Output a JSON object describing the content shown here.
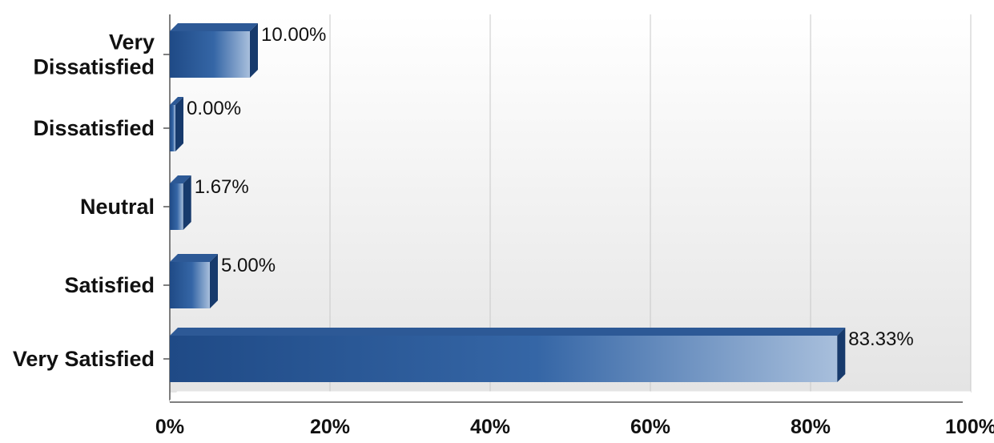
{
  "chart_data": {
    "type": "bar",
    "orientation": "horizontal",
    "categories": [
      [
        "Very",
        "Dissatisfied"
      ],
      [
        "Dissatisfied"
      ],
      [
        "Neutral"
      ],
      [
        "Satisfied"
      ],
      [
        "Very Satisfied"
      ]
    ],
    "values": [
      10.0,
      0.0,
      1.67,
      5.0,
      83.33
    ],
    "data_labels": [
      "10.00%",
      "0.00%",
      "1.67%",
      "5.00%",
      "83.33%"
    ],
    "xticks": [
      "0%",
      "20%",
      "40%",
      "60%",
      "80%",
      "100%"
    ],
    "xlim": [
      0,
      100
    ],
    "grid": true,
    "legend": "none",
    "colors": {
      "bar_dark": "#1f4a86",
      "bar_mid": "#3566a6",
      "bar_light": "#a8bfdc",
      "bar_top": "#2d5996",
      "bar_side": "#173a6c",
      "grid": "#c8c8c8",
      "axis": "#555555",
      "plot_bg_top": "#ffffff",
      "plot_bg_bottom": "#e4e4e4"
    }
  }
}
